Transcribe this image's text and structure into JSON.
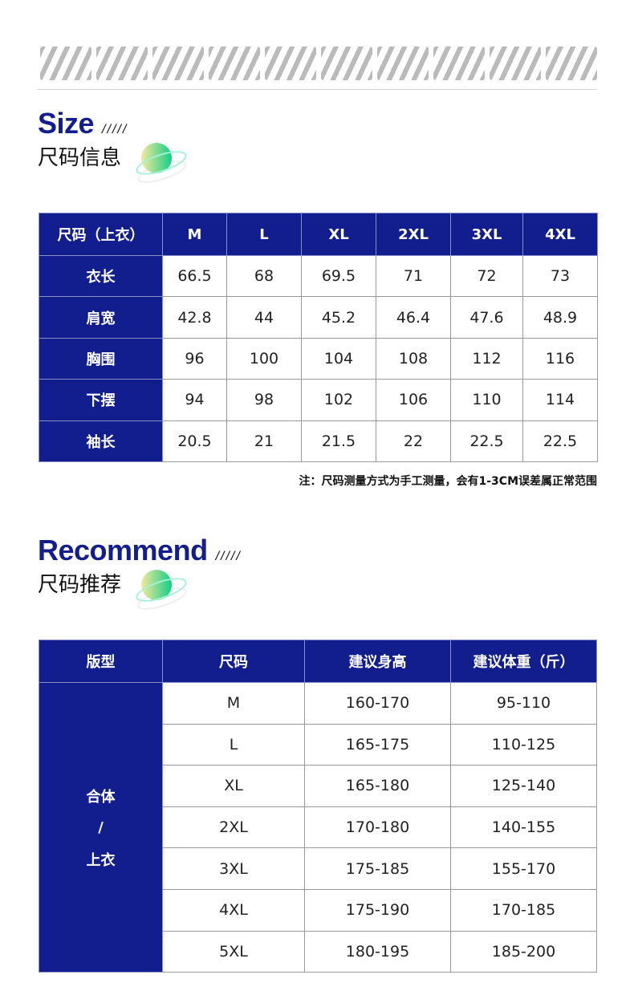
{
  "size_section": {
    "title_en": "Size",
    "slashes": "/////",
    "title_cn": "尺码信息"
  },
  "size_table": {
    "headers": [
      "尺码（上衣）",
      "M",
      "L",
      "XL",
      "2XL",
      "3XL",
      "4XL"
    ],
    "rows": [
      {
        "label": "衣长",
        "values": [
          "66.5",
          "68",
          "69.5",
          "71",
          "72",
          "73"
        ]
      },
      {
        "label": "肩宽",
        "values": [
          "42.8",
          "44",
          "45.2",
          "46.4",
          "47.6",
          "48.9"
        ]
      },
      {
        "label": "胸围",
        "values": [
          "96",
          "100",
          "104",
          "108",
          "112",
          "116"
        ]
      },
      {
        "label": "下摆",
        "values": [
          "94",
          "98",
          "102",
          "106",
          "110",
          "114"
        ]
      },
      {
        "label": "袖长",
        "values": [
          "20.5",
          "21",
          "21.5",
          "22",
          "22.5",
          "22.5"
        ]
      }
    ]
  },
  "note": "注：尺码测量方式为手工测量，会有1-3CM误差属正常范围",
  "recommend_section": {
    "title_en": "Recommend",
    "slashes": "/////",
    "title_cn": "尺码推荐"
  },
  "recommend_table": {
    "headers": [
      "版型",
      "尺码",
      "建议身高",
      "建议体重（斤）"
    ],
    "fit_label": [
      "合体",
      "/",
      "上衣"
    ],
    "rows": [
      [
        "M",
        "160-170",
        "95-110"
      ],
      [
        "L",
        "165-175",
        "110-125"
      ],
      [
        "XL",
        "165-180",
        "125-140"
      ],
      [
        "2XL",
        "170-180",
        "140-155"
      ],
      [
        "3XL",
        "175-185",
        "155-170"
      ],
      [
        "4XL",
        "175-190",
        "170-185"
      ],
      [
        "5XL",
        "180-195",
        "185-200"
      ]
    ]
  },
  "colors": {
    "accent": "#131e8e"
  }
}
